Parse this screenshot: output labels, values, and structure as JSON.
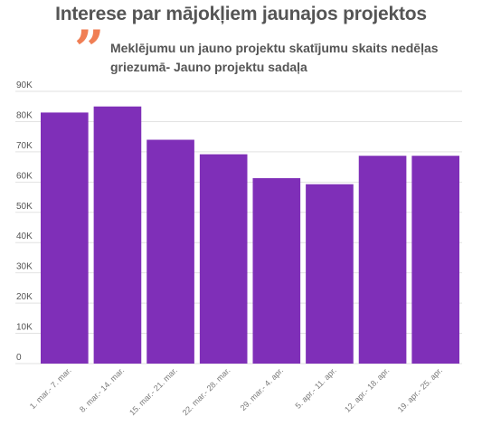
{
  "chart_data": {
    "type": "bar",
    "title": "Interese par mājokļiem jaunajos projektos",
    "subtitle": "Meklējumu un jauno projektu skatījumu skaits nedēļas griezumā- Jauno projektu sadaļa",
    "categories": [
      "1. mar.- 7. mar.",
      "8. mar.- 14. mar.",
      "15. mar.- 21. mar.",
      "22. mar.- 28. mar.",
      "29. mar.- 4. apr.",
      "5. apr.- 11. apr.",
      "12. apr.- 18. apr.",
      "19. apr.- 25. apr."
    ],
    "values": [
      83000,
      85000,
      74000,
      69200,
      61300,
      59300,
      68700,
      68700
    ],
    "yticks": [
      0,
      10000,
      20000,
      30000,
      40000,
      50000,
      60000,
      70000,
      80000,
      90000
    ],
    "ytick_labels": [
      "0",
      "10K",
      "20K",
      "30K",
      "40K",
      "50K",
      "60K",
      "70K",
      "80K",
      "90K"
    ],
    "ylim": [
      0,
      90000
    ],
    "xlabel": "",
    "ylabel": "",
    "grid": true,
    "bar_color": "#7f2fb8",
    "grid_color": "#e2e2e2"
  },
  "decor": {
    "quote_glyph": "”",
    "quote_color": "#f07f55"
  }
}
